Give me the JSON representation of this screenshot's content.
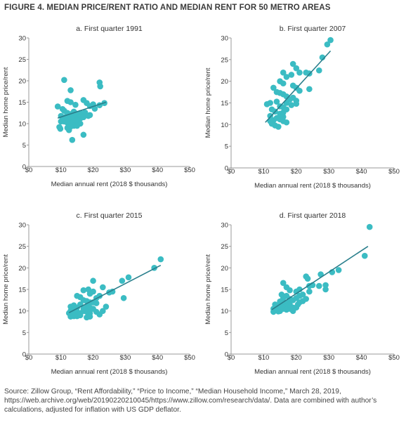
{
  "figure_title": "FIGURE 4. MEDIAN PRICE/RENT RATIO AND MEDIAN RENT FOR 50 METRO AREAS",
  "source_note": "Source: Zillow Group, “Rent Affordability,” “Price to Income,” “Median Household Income,” March 28, 2019, https://web.archive.org/web/20190220210045/https://www.zillow.com/research/data/. Data are combined with author’s calculations, adjusted for inflation with US GDP deflator.",
  "colors": {
    "points": "#3bbcc3",
    "trend": "#2a7f8c",
    "axis": "#999999",
    "text": "#333333"
  },
  "chart_data": [
    {
      "type": "scatter",
      "title": "a. First quarter 1991",
      "xlabel": "Median annual rent (2018 $ thousands)",
      "ylabel": "Median home price/rent",
      "xlim": [
        0,
        50
      ],
      "ylim": [
        0,
        30
      ],
      "x_ticks": [
        "$0",
        "$10",
        "$20",
        "$30",
        "$40",
        "$50"
      ],
      "y_ticks": [
        "0",
        "5",
        "10",
        "15",
        "20",
        "25",
        "30"
      ],
      "trendline": [
        [
          9,
          11.3
        ],
        [
          24,
          15
        ]
      ],
      "points": [
        [
          11,
          20.2
        ],
        [
          22,
          19.6
        ],
        [
          22.2,
          18.7
        ],
        [
          13,
          17.8
        ],
        [
          9,
          14
        ],
        [
          10.5,
          13.4
        ],
        [
          12,
          15.3
        ],
        [
          13,
          15
        ],
        [
          14.5,
          14.4
        ],
        [
          17,
          15.5
        ],
        [
          18,
          14.8
        ],
        [
          19,
          14.1
        ],
        [
          20,
          14.5
        ],
        [
          22,
          14.3
        ],
        [
          23.5,
          14.8
        ],
        [
          11,
          13
        ],
        [
          12,
          12.5
        ],
        [
          13,
          12.2
        ],
        [
          14,
          12.8
        ],
        [
          15,
          12.3
        ],
        [
          16,
          12.5
        ],
        [
          17.5,
          12.6
        ],
        [
          10,
          11.8
        ],
        [
          11,
          11.5
        ],
        [
          12,
          11.2
        ],
        [
          13,
          11
        ],
        [
          14,
          11.5
        ],
        [
          15,
          11
        ],
        [
          16,
          11.2
        ],
        [
          17,
          11.5
        ],
        [
          19,
          12
        ],
        [
          10,
          10.5
        ],
        [
          11,
          10.5
        ],
        [
          12,
          10.2
        ],
        [
          13,
          10
        ],
        [
          14,
          10.5
        ],
        [
          15,
          10.8
        ],
        [
          16,
          10
        ],
        [
          12.5,
          9.8
        ],
        [
          14,
          9.5
        ],
        [
          9.5,
          9.2
        ],
        [
          12,
          9
        ],
        [
          13,
          9.3
        ],
        [
          15,
          9.5
        ],
        [
          9.8,
          8.8
        ],
        [
          12.5,
          8.5
        ],
        [
          17,
          7.4
        ],
        [
          13.5,
          6.2
        ],
        [
          18.5,
          11.8
        ],
        [
          20.5,
          13.5
        ]
      ]
    },
    {
      "type": "scatter",
      "title": "b. First quarter 2007",
      "xlabel": "Median annual rent (2018 $ thousands)",
      "ylabel": "Median home price/rent",
      "xlim": [
        0,
        50
      ],
      "ylim": [
        0,
        30
      ],
      "x_ticks": [
        "$0",
        "$10",
        "$20",
        "$30",
        "$40",
        "$50"
      ],
      "y_ticks": [
        "0",
        "5",
        "10",
        "15",
        "20",
        "25",
        "30"
      ],
      "trendline": [
        [
          10.5,
          10.5
        ],
        [
          30.5,
          27
        ]
      ],
      "points": [
        [
          30.5,
          29.5
        ],
        [
          29.5,
          28.5
        ],
        [
          28,
          25.5
        ],
        [
          27,
          22.5
        ],
        [
          19,
          24
        ],
        [
          20,
          23
        ],
        [
          16,
          22
        ],
        [
          17,
          21
        ],
        [
          18.5,
          21.5
        ],
        [
          21,
          22
        ],
        [
          23,
          22
        ],
        [
          24,
          21.8
        ],
        [
          15,
          20
        ],
        [
          16,
          19.5
        ],
        [
          19,
          19
        ],
        [
          20,
          18.5
        ],
        [
          21,
          17.8
        ],
        [
          24,
          18.2
        ],
        [
          13,
          18.5
        ],
        [
          14,
          17.5
        ],
        [
          15,
          17.3
        ],
        [
          16,
          17
        ],
        [
          17,
          16.5
        ],
        [
          18,
          15.8
        ],
        [
          19,
          16.2
        ],
        [
          20,
          15.5
        ],
        [
          12,
          15
        ],
        [
          14,
          15.3
        ],
        [
          15,
          14.2
        ],
        [
          16,
          14
        ],
        [
          17,
          15
        ],
        [
          18.5,
          14.5
        ],
        [
          20,
          14.8
        ],
        [
          11,
          14.7
        ],
        [
          12.5,
          13.5
        ],
        [
          13.5,
          13
        ],
        [
          15,
          12.5
        ],
        [
          16,
          12.8
        ],
        [
          17,
          13.5
        ],
        [
          12,
          12
        ],
        [
          13,
          11
        ],
        [
          14,
          11.5
        ],
        [
          15,
          11.2
        ],
        [
          16,
          11.8
        ],
        [
          17,
          10.5
        ],
        [
          12.5,
          10.2
        ],
        [
          13.5,
          9.8
        ],
        [
          14.5,
          9.5
        ],
        [
          16,
          10.8
        ],
        [
          12,
          10.8
        ]
      ]
    },
    {
      "type": "scatter",
      "title": "c. First quarter 2015",
      "xlabel": "Median annual rent (2018 $ thousands)",
      "ylabel": "Median home price/rent",
      "xlim": [
        0,
        50
      ],
      "ylim": [
        0,
        30
      ],
      "x_ticks": [
        "$0",
        "$10",
        "$20",
        "$30",
        "$40",
        "$50"
      ],
      "y_ticks": [
        "0",
        "5",
        "10",
        "15",
        "20",
        "25",
        "30"
      ],
      "trendline": [
        [
          12.5,
          9.6
        ],
        [
          41,
          20.6
        ]
      ],
      "points": [
        [
          41,
          22
        ],
        [
          39,
          20
        ],
        [
          31,
          17.8
        ],
        [
          29,
          17
        ],
        [
          20,
          17
        ],
        [
          23,
          15.5
        ],
        [
          25,
          14.3
        ],
        [
          26,
          14.5
        ],
        [
          29.5,
          13
        ],
        [
          17,
          14.8
        ],
        [
          18.5,
          15
        ],
        [
          19,
          14
        ],
        [
          20,
          14.5
        ],
        [
          21,
          13
        ],
        [
          22,
          13.5
        ],
        [
          15,
          13.5
        ],
        [
          16,
          13.2
        ],
        [
          17,
          12.5
        ],
        [
          18,
          12.3
        ],
        [
          19,
          12
        ],
        [
          20,
          12
        ],
        [
          21,
          11.8
        ],
        [
          13,
          11
        ],
        [
          14,
          11.3
        ],
        [
          15,
          10.8
        ],
        [
          16,
          11.5
        ],
        [
          17,
          10.5
        ],
        [
          18,
          11
        ],
        [
          19,
          10.8
        ],
        [
          20,
          10.5
        ],
        [
          13,
          10
        ],
        [
          14,
          10.2
        ],
        [
          15,
          9.8
        ],
        [
          16,
          9.5
        ],
        [
          17,
          10
        ],
        [
          18,
          9.8
        ],
        [
          19,
          9.5
        ],
        [
          13,
          9.2
        ],
        [
          14,
          9
        ],
        [
          15,
          8.8
        ],
        [
          16,
          9
        ],
        [
          13,
          8.7
        ],
        [
          14,
          8.8
        ],
        [
          18,
          8.5
        ],
        [
          19,
          8.7
        ],
        [
          22,
          9.2
        ],
        [
          23,
          10
        ],
        [
          21,
          9.8
        ],
        [
          24,
          11
        ],
        [
          12.5,
          9.5
        ]
      ]
    },
    {
      "type": "scatter",
      "title": "d. First quarter 2018",
      "xlabel": "Median annual rent (2018 $ thousands)",
      "ylabel": "Median home price/rent",
      "xlim": [
        0,
        50
      ],
      "ylim": [
        0,
        30
      ],
      "x_ticks": [
        "$0",
        "$10",
        "$20",
        "$30",
        "$40",
        "$50"
      ],
      "y_ticks": [
        "0",
        "5",
        "10",
        "15",
        "20",
        "25",
        "30"
      ],
      "trendline": [
        [
          12.5,
          10.3
        ],
        [
          42,
          25
        ]
      ],
      "points": [
        [
          42.5,
          29.5
        ],
        [
          41,
          22.8
        ],
        [
          33,
          19.5
        ],
        [
          31,
          19
        ],
        [
          27.5,
          18.5
        ],
        [
          23,
          18
        ],
        [
          23.5,
          17.5
        ],
        [
          16,
          16.5
        ],
        [
          25,
          16
        ],
        [
          24,
          15.8
        ],
        [
          27,
          15.8
        ],
        [
          29,
          16
        ],
        [
          29,
          15
        ],
        [
          17,
          15.5
        ],
        [
          18,
          14.8
        ],
        [
          20,
          14.5
        ],
        [
          21,
          13.5
        ],
        [
          22,
          13.8
        ],
        [
          16,
          13
        ],
        [
          17,
          13.5
        ],
        [
          18,
          12.8
        ],
        [
          19,
          12.5
        ],
        [
          20,
          13
        ],
        [
          15,
          12.2
        ],
        [
          16,
          12
        ],
        [
          17,
          11.8
        ],
        [
          18,
          11.5
        ],
        [
          21,
          12
        ],
        [
          22,
          12.3
        ],
        [
          13.5,
          11.5
        ],
        [
          14,
          11
        ],
        [
          15,
          11.2
        ],
        [
          16,
          10.8
        ],
        [
          17,
          11
        ],
        [
          18,
          10.5
        ],
        [
          19,
          10.8
        ],
        [
          20,
          10.8
        ],
        [
          13,
          10.5
        ],
        [
          14,
          10.2
        ],
        [
          15,
          10
        ],
        [
          16,
          10.5
        ],
        [
          17,
          10.3
        ],
        [
          13,
          9.8
        ],
        [
          14.5,
          9.9
        ],
        [
          19,
          10
        ],
        [
          20.5,
          11.5
        ],
        [
          23,
          12.8
        ],
        [
          21,
          15
        ],
        [
          24,
          14.5
        ],
        [
          15.5,
          13.8
        ]
      ]
    }
  ]
}
